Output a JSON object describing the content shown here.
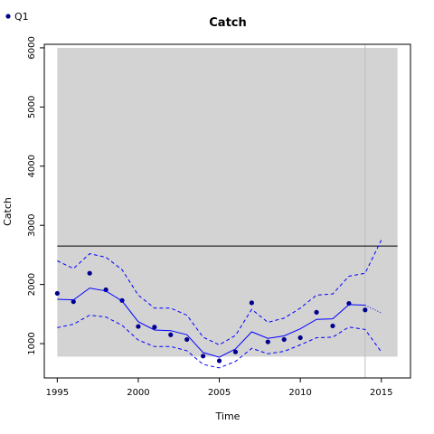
{
  "chart_data": {
    "type": "line",
    "title": "Catch",
    "xlabel": "Time",
    "ylabel": "Catch",
    "xlim": [
      1994.2,
      2016.8
    ],
    "ylim": [
      420,
      6060
    ],
    "xticks": [
      1995,
      2000,
      2005,
      2010,
      2015
    ],
    "yticks": [
      1000,
      2000,
      3000,
      4000,
      5000,
      6000
    ],
    "grid": false,
    "legend": {
      "position": "top-left",
      "entries": [
        {
          "label": "Q1",
          "color": "#00008b"
        }
      ]
    },
    "shaded_region": {
      "x": [
        1995,
        2016
      ],
      "y": [
        780,
        6000
      ],
      "color": "#d3d3d3"
    },
    "vline": {
      "x": 2014,
      "color": "#bfbfbf"
    },
    "hline": {
      "y": 2650,
      "color": "#000000"
    },
    "series": [
      {
        "name": "Q1",
        "kind": "points",
        "color": "#00008b",
        "x": [
          1995,
          1996,
          1997,
          1998,
          1999,
          2000,
          2001,
          2002,
          2003,
          2004,
          2005,
          2006,
          2007,
          2008,
          2009,
          2010,
          2011,
          2012,
          2013,
          2014
        ],
        "y": [
          1850,
          1710,
          2190,
          1910,
          1730,
          1290,
          1280,
          1150,
          1070,
          790,
          710,
          860,
          1690,
          1030,
          1070,
          1100,
          1530,
          1300,
          1680,
          1570
        ]
      },
      {
        "kind": "fitted",
        "color": "#0000ff",
        "style": "solid",
        "x": [
          1995,
          1996,
          1997,
          1998,
          1999,
          2000,
          2001,
          2002,
          2003,
          2004,
          2005,
          2006,
          2007,
          2008,
          2009,
          2010,
          2011,
          2012,
          2013,
          2014
        ],
        "y": [
          1750,
          1740,
          1940,
          1890,
          1720,
          1370,
          1230,
          1220,
          1150,
          850,
          770,
          910,
          1200,
          1090,
          1130,
          1250,
          1410,
          1420,
          1660,
          1650
        ]
      },
      {
        "kind": "fitted-projection",
        "color": "#0000ff",
        "style": "dotted",
        "x": [
          2014,
          2015
        ],
        "y": [
          1650,
          1520
        ]
      },
      {
        "kind": "upper-bound",
        "color": "#0000ff",
        "style": "dashed",
        "x": [
          1995,
          1996,
          1997,
          1998,
          1999,
          2000,
          2001,
          2002,
          2003,
          2004,
          2005,
          2006,
          2007,
          2008,
          2009,
          2010,
          2011,
          2012,
          2013,
          2014,
          2015
        ],
        "y": [
          2400,
          2270,
          2520,
          2460,
          2250,
          1820,
          1600,
          1600,
          1480,
          1110,
          980,
          1140,
          1580,
          1360,
          1430,
          1600,
          1820,
          1840,
          2140,
          2190,
          2750
        ]
      },
      {
        "kind": "lower-bound",
        "color": "#0000ff",
        "style": "dashed",
        "x": [
          1995,
          1996,
          1997,
          1998,
          1999,
          2000,
          2001,
          2002,
          2003,
          2004,
          2005,
          2006,
          2007,
          2008,
          2009,
          2010,
          2011,
          2012,
          2013,
          2014,
          2015
        ],
        "y": [
          1270,
          1330,
          1480,
          1450,
          1310,
          1060,
          950,
          950,
          880,
          650,
          590,
          700,
          920,
          830,
          870,
          980,
          1100,
          1110,
          1280,
          1240,
          860
        ]
      }
    ]
  }
}
